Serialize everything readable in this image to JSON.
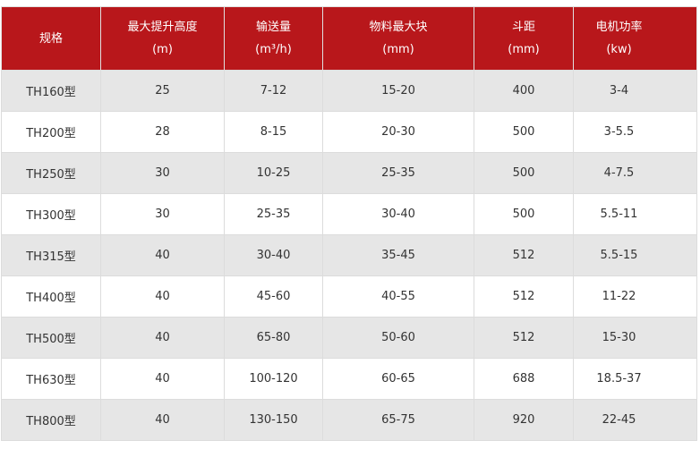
{
  "colors": {
    "header_bg": "#b8171b",
    "odd_row_bg": "#e6e6e6",
    "even_row_bg": "#ffffff"
  },
  "headers": [
    {
      "line1": "规格",
      "line2": ""
    },
    {
      "line1": "最大提升高度",
      "line2": "(m)"
    },
    {
      "line1": "输送量",
      "line2": "(m³/h)"
    },
    {
      "line1": "物料最大块",
      "line2": "(mm)"
    },
    {
      "line1": "斗距",
      "line2": "(mm)"
    },
    {
      "line1": "电机功率",
      "line2": "(kw)"
    }
  ],
  "rows": [
    [
      "TH160型",
      "25",
      "7-12",
      "15-20",
      "400",
      "3-4"
    ],
    [
      "TH200型",
      "28",
      "8-15",
      "20-30",
      "500",
      "3-5.5"
    ],
    [
      "TH250型",
      "30",
      "10-25",
      "25-35",
      "500",
      "4-7.5"
    ],
    [
      "TH300型",
      "30",
      "25-35",
      "30-40",
      "500",
      "5.5-11"
    ],
    [
      "TH315型",
      "40",
      "30-40",
      "35-45",
      "512",
      "5.5-15"
    ],
    [
      "TH400型",
      "40",
      "45-60",
      "40-55",
      "512",
      "11-22"
    ],
    [
      "TH500型",
      "40",
      "65-80",
      "50-60",
      "512",
      "15-30"
    ],
    [
      "TH630型",
      "40",
      "100-120",
      "60-65",
      "688",
      "18.5-37"
    ],
    [
      "TH800型",
      "40",
      "130-150",
      "65-75",
      "920",
      "22-45"
    ]
  ]
}
